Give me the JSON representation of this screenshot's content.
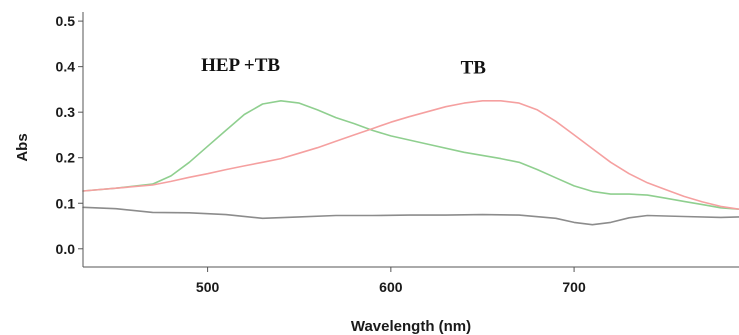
{
  "chart_data": {
    "type": "line",
    "title": "",
    "xlabel": "Wavelength (nm)",
    "ylabel": "Abs",
    "xlim": [
      432,
      790
    ],
    "ylim": [
      -0.04,
      0.52
    ],
    "xticks": [
      500,
      600,
      700
    ],
    "xtick_labels": [
      "500",
      "600",
      "700"
    ],
    "yticks": [
      0.0,
      0.1,
      0.2,
      0.3,
      0.4,
      0.5
    ],
    "ytick_labels": [
      "0.0",
      "0.1",
      "0.2",
      "0.3",
      "0.4",
      "0.5"
    ],
    "grid": false,
    "legend": false,
    "annotations": [
      {
        "text": "HEP +TB",
        "x": 518,
        "y": 0.39
      },
      {
        "text": "TB",
        "x": 645,
        "y": 0.385
      }
    ],
    "series": [
      {
        "color": "#8fcf8f",
        "x": [
          432,
          450,
          470,
          480,
          490,
          500,
          510,
          520,
          530,
          540,
          550,
          560,
          570,
          580,
          590,
          600,
          620,
          640,
          660,
          670,
          680,
          690,
          700,
          710,
          720,
          730,
          740,
          750,
          760,
          770,
          780,
          790
        ],
        "y": [
          0.127,
          0.133,
          0.142,
          0.16,
          0.19,
          0.225,
          0.26,
          0.295,
          0.318,
          0.325,
          0.32,
          0.305,
          0.288,
          0.275,
          0.26,
          0.248,
          0.23,
          0.212,
          0.198,
          0.19,
          0.174,
          0.156,
          0.138,
          0.126,
          0.12,
          0.12,
          0.118,
          0.111,
          0.104,
          0.097,
          0.09,
          0.087
        ]
      },
      {
        "color": "#f5a0a0",
        "x": [
          432,
          450,
          470,
          480,
          490,
          500,
          510,
          520,
          530,
          540,
          550,
          560,
          570,
          580,
          590,
          600,
          610,
          620,
          630,
          640,
          650,
          660,
          670,
          680,
          690,
          700,
          710,
          720,
          730,
          740,
          750,
          760,
          770,
          780,
          790
        ],
        "y": [
          0.127,
          0.133,
          0.14,
          0.148,
          0.157,
          0.165,
          0.174,
          0.182,
          0.19,
          0.198,
          0.21,
          0.222,
          0.236,
          0.25,
          0.264,
          0.278,
          0.29,
          0.301,
          0.312,
          0.32,
          0.325,
          0.325,
          0.32,
          0.305,
          0.28,
          0.25,
          0.22,
          0.19,
          0.165,
          0.145,
          0.13,
          0.115,
          0.103,
          0.093,
          0.087
        ]
      },
      {
        "color": "#8c8c8c",
        "x": [
          432,
          450,
          470,
          490,
          510,
          530,
          550,
          570,
          590,
          610,
          630,
          650,
          670,
          690,
          700,
          710,
          720,
          730,
          740,
          760,
          780,
          790
        ],
        "y": [
          0.091,
          0.088,
          0.08,
          0.079,
          0.075,
          0.067,
          0.07,
          0.073,
          0.073,
          0.074,
          0.074,
          0.075,
          0.074,
          0.067,
          0.058,
          0.053,
          0.058,
          0.068,
          0.073,
          0.071,
          0.069,
          0.07
        ]
      }
    ]
  }
}
